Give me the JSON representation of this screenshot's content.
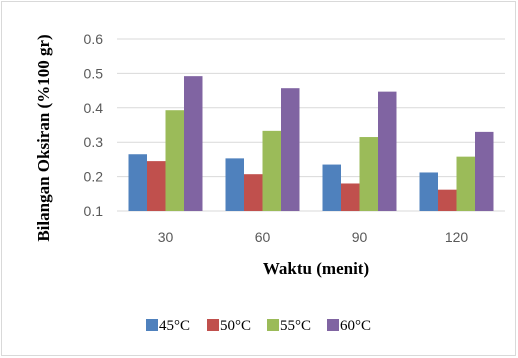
{
  "chart_data": {
    "type": "bar",
    "xlabel": "Waktu (menit)",
    "ylabel": "Bilangan Oksiran (%100 gr)",
    "categories": [
      "30",
      "60",
      "90",
      "120"
    ],
    "ylim": [
      0.1,
      0.6
    ],
    "yticks": [
      "0.1",
      "0.2",
      "0.3",
      "0.4",
      "0.5",
      "0.6"
    ],
    "grid": true,
    "legend_position": "bottom",
    "series": [
      {
        "name": "45°C",
        "color": "#4f81bd",
        "values": [
          0.265,
          0.253,
          0.235,
          0.212
        ]
      },
      {
        "name": "50°C",
        "color": "#c0504d",
        "values": [
          0.245,
          0.207,
          0.18,
          0.162
        ]
      },
      {
        "name": "55°C",
        "color": "#9bbb59",
        "values": [
          0.393,
          0.333,
          0.315,
          0.258
        ]
      },
      {
        "name": "60°C",
        "color": "#8064a2",
        "values": [
          0.492,
          0.457,
          0.447,
          0.33
        ]
      }
    ]
  }
}
